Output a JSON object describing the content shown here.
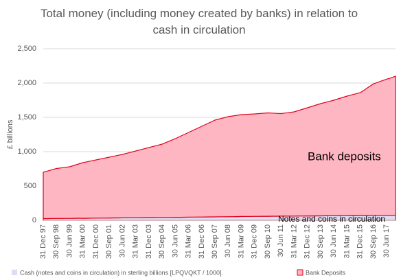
{
  "chart_data": {
    "type": "stacked_area",
    "title": "Total money (including money created by banks) in relation to cash in circulation",
    "y_label": "£ billions",
    "categories": [
      "31 Dec 97",
      null,
      null,
      "30 Sep 98",
      null,
      null,
      "30 Jun 99",
      null,
      null,
      "31 Mar 00",
      null,
      null,
      "31 Dec 00",
      null,
      null,
      "30 Sep 01",
      null,
      null,
      "30 Jun 02",
      null,
      null,
      "31 Mar 03",
      null,
      null,
      "31 Dec 03",
      null,
      null,
      "30 Sep 04",
      null,
      null,
      "30 Jun 05",
      null,
      null,
      "31 Mar 06",
      null,
      null,
      "31 Dec 06",
      null,
      null,
      "30 Sep 07",
      null,
      null,
      "30 Jun 08",
      null,
      null,
      "31 Mar 09",
      null,
      null,
      "31 Dec 09",
      null,
      null,
      "30 Sep 10",
      null,
      null,
      "30 Jun 11",
      null,
      null,
      "31 Mar 12",
      null,
      null,
      "31 Dec 12",
      null,
      null,
      "30 Sep 13",
      null,
      null,
      "30 Jun 14",
      null,
      null,
      "31 Mar 15",
      null,
      null,
      "31 Dec 15",
      null,
      null,
      "30 Sep 16",
      null,
      null,
      "30 Jun 17",
      null,
      null
    ],
    "series": [
      {
        "name": "Cash (notes and coins in circulation) in sterling billions [LPQVQKT / 1000].",
        "color": "#dcdcf2",
        "values": [
          25,
          25,
          26,
          27,
          27,
          28,
          28,
          29,
          31,
          29,
          30,
          31,
          32,
          33,
          33,
          34,
          35,
          35,
          36,
          36,
          37,
          37,
          38,
          39,
          40,
          40,
          41,
          41,
          42,
          43,
          44,
          44,
          45,
          46,
          47,
          48,
          48,
          49,
          50,
          50,
          51,
          52,
          53,
          53,
          54,
          56,
          57,
          57,
          58,
          58,
          59,
          59,
          60,
          60,
          61,
          61,
          62,
          62,
          63,
          63,
          64,
          64,
          65,
          65,
          66,
          66,
          67,
          67,
          68,
          68,
          69,
          69,
          70,
          70,
          71,
          71,
          72,
          72,
          73,
          73,
          74
        ]
      },
      {
        "name": "Bank Deposits",
        "color": "#ffb6c3",
        "values": [
          675,
          693,
          711,
          728,
          736,
          744,
          752,
          771,
          789,
          811,
          823,
          836,
          848,
          860,
          874,
          886,
          898,
          912,
          924,
          941,
          956,
          973,
          989,
          1004,
          1020,
          1037,
          1052,
          1069,
          1095,
          1120,
          1146,
          1176,
          1205,
          1234,
          1263,
          1292,
          1322,
          1351,
          1380,
          1410,
          1426,
          1441,
          1457,
          1467,
          1476,
          1484,
          1486,
          1490,
          1492,
          1497,
          1501,
          1506,
          1502,
          1498,
          1494,
          1502,
          1510,
          1518,
          1537,
          1557,
          1576,
          1596,
          1615,
          1635,
          1651,
          1667,
          1683,
          1703,
          1722,
          1742,
          1758,
          1774,
          1790,
          1832,
          1875,
          1917,
          1939,
          1962,
          1984,
          2003,
          2026
        ]
      }
    ],
    "outline_color": "#e0001b",
    "annotations": [
      "Bank deposits",
      "Notes and coins in circulation"
    ],
    "ylim": [
      0,
      2500
    ],
    "yticks": [
      0,
      500,
      {
        "value": 1000,
        "label": "1,000"
      },
      {
        "value": 1500,
        "label": "1,500"
      },
      {
        "value": 2000,
        "label": "2,000"
      },
      {
        "value": 2500,
        "label": "2,500"
      }
    ],
    "grid": true
  }
}
